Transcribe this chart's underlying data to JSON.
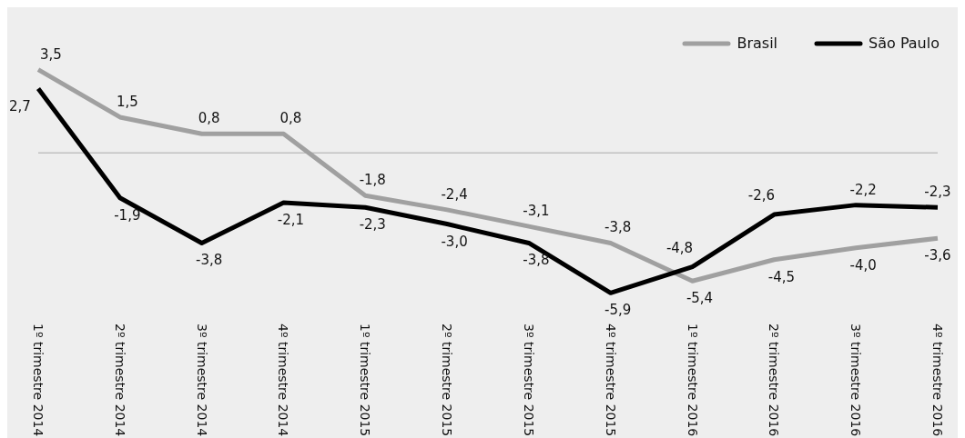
{
  "chart_data": {
    "type": "line",
    "categories": [
      "1º trimestre 2014",
      "2º trimestre 2014",
      "3º trimestre 2014",
      "4º trimestre 2014",
      "1º trimestre 2015",
      "2º trimestre 2015",
      "3º trimestre 2015",
      "4º trimestre 2015",
      "1º trimestre 2016",
      "2º trimestre 2016",
      "3º trimestre 2016",
      "4º trimestre 2016"
    ],
    "series": [
      {
        "name": "Brasil",
        "color": "#a0a0a0",
        "values": [
          3.5,
          1.5,
          0.8,
          0.8,
          -1.8,
          -2.4,
          -3.1,
          -3.8,
          -5.4,
          -4.5,
          -4.0,
          -3.6
        ],
        "value_labels": [
          "3,5",
          "1,5",
          "0,8",
          "0,8",
          "-1,8",
          "-2,4",
          "-3,1",
          "-3,8",
          "-5,4",
          "-4,5",
          "-4,0",
          "-3,6"
        ]
      },
      {
        "name": "São Paulo",
        "color": "#000000",
        "values": [
          2.7,
          -1.9,
          -3.8,
          -2.1,
          -2.3,
          -3.0,
          -3.8,
          -5.9,
          -4.8,
          -2.6,
          -2.2,
          -2.3
        ],
        "value_labels": [
          "2,7",
          "-1,9",
          "-3,8",
          "-2,1",
          "-2,3",
          "-3,0",
          "-3,8",
          "-5,9",
          "-4,8",
          "-2,6",
          "-2,2",
          "-2,3"
        ]
      }
    ],
    "legend": "top right",
    "marker": "none",
    "line_style": "solid"
  }
}
